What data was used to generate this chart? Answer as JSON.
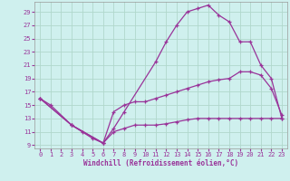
{
  "xlabel": "Windchill (Refroidissement éolien,°C)",
  "bg_color": "#cff0ee",
  "grid_color": "#b0d8cc",
  "line_color": "#993399",
  "xlim": [
    -0.5,
    23.5
  ],
  "ylim": [
    8.5,
    30.5
  ],
  "xticks": [
    0,
    1,
    2,
    3,
    4,
    5,
    6,
    7,
    8,
    9,
    10,
    11,
    12,
    13,
    14,
    15,
    16,
    17,
    18,
    19,
    20,
    21,
    22,
    23
  ],
  "yticks": [
    9,
    11,
    13,
    15,
    17,
    19,
    21,
    23,
    25,
    27,
    29
  ],
  "curve1_x": [
    0,
    1,
    3,
    4,
    5,
    6,
    7,
    8,
    11,
    12,
    13,
    14,
    15,
    16,
    17,
    18,
    19,
    20,
    21,
    22,
    23
  ],
  "curve1_y": [
    16,
    15,
    12,
    11,
    10,
    9.3,
    11.5,
    14,
    21.5,
    24.5,
    27,
    29,
    29.5,
    30,
    28.5,
    27.5,
    24.5,
    24.5,
    21,
    19,
    13
  ],
  "curve2_x": [
    0,
    3,
    6,
    7,
    8,
    9,
    10,
    11,
    12,
    13,
    14,
    15,
    16,
    17,
    18,
    19,
    20,
    21,
    22,
    23
  ],
  "curve2_y": [
    16,
    12,
    9.3,
    14,
    15,
    15.5,
    15.5,
    16,
    16.5,
    17,
    17.5,
    18,
    18.5,
    18.8,
    19,
    20,
    20,
    19.5,
    17.5,
    13.5
  ],
  "curve3_x": [
    0,
    3,
    6,
    7,
    8,
    9,
    10,
    11,
    12,
    13,
    14,
    15,
    16,
    17,
    18,
    19,
    20,
    21,
    22,
    23
  ],
  "curve3_y": [
    16,
    12,
    9.3,
    11,
    11.5,
    12,
    12,
    12,
    12.2,
    12.5,
    12.8,
    13,
    13,
    13,
    13,
    13,
    13,
    13,
    13,
    13
  ]
}
